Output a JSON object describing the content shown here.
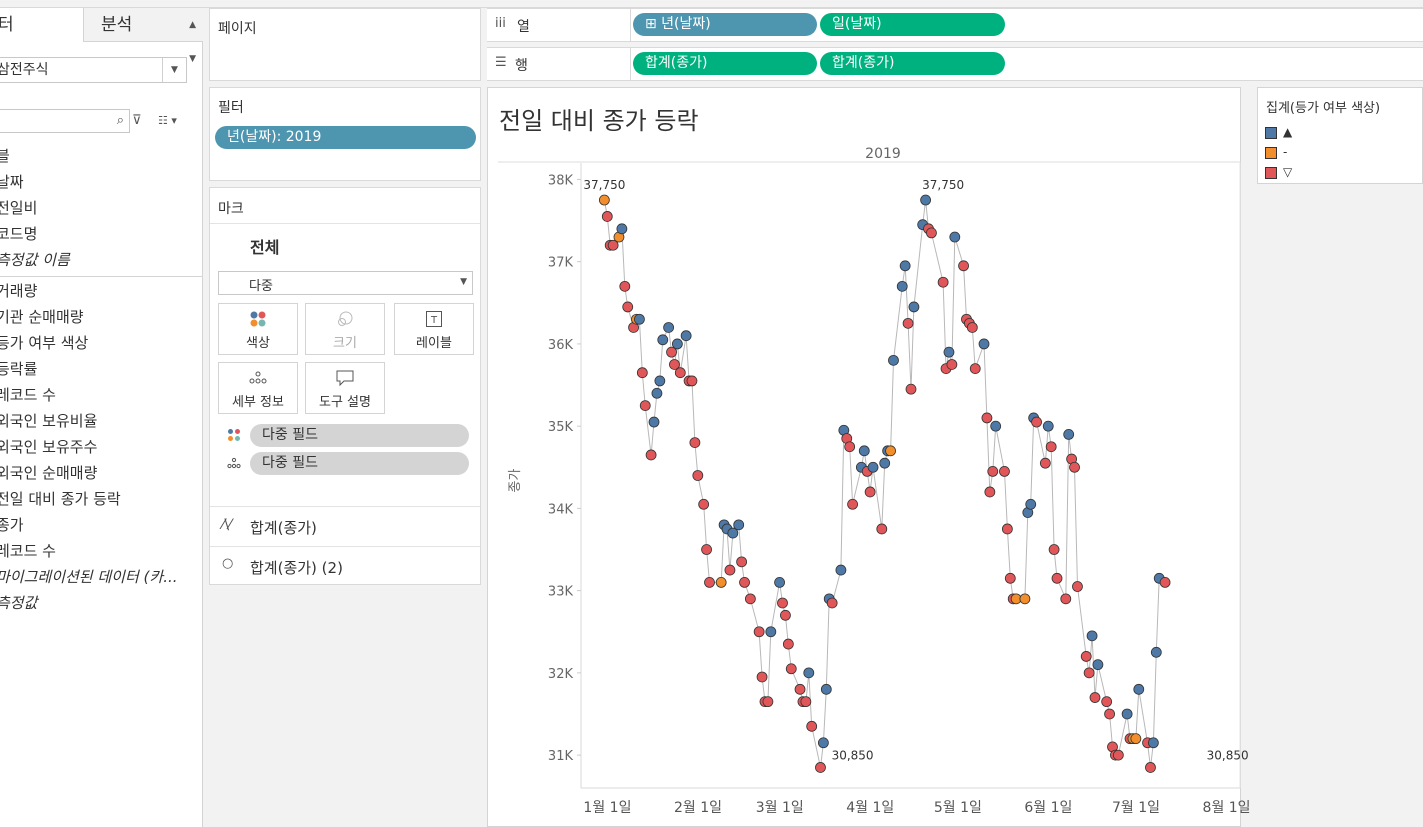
{
  "data_pane": {
    "tab_data": "터",
    "tab_analysis": "분석",
    "datasource": "삼전주식",
    "fields_dimensions": [
      {
        "label": "블",
        "italic": false
      },
      {
        "label": "날짜",
        "italic": false
      },
      {
        "label": "전일비",
        "italic": false
      },
      {
        "label": "코드명",
        "italic": false
      },
      {
        "label": "측정값 이름",
        "italic": true
      }
    ],
    "fields_measures": [
      {
        "label": "거래량",
        "italic": false
      },
      {
        "label": "기관 순매매량",
        "italic": false
      },
      {
        "label": "등가 여부 색상",
        "italic": false
      },
      {
        "label": "등락률",
        "italic": false
      },
      {
        "label": "레코드 수",
        "italic": false
      },
      {
        "label": "외국인 보유비율",
        "italic": false
      },
      {
        "label": "외국인 보유주수",
        "italic": false
      },
      {
        "label": "외국인 순매매량",
        "italic": false
      },
      {
        "label": "전일 대비 종가 등락",
        "italic": false
      },
      {
        "label": "종가",
        "italic": false
      },
      {
        "label": "레코드 수",
        "italic": false
      },
      {
        "label": "마이그레이션된 데이터 (카...",
        "italic": true
      },
      {
        "label": "측정값",
        "italic": true
      }
    ]
  },
  "pages_shelf": {
    "title": "페이지"
  },
  "filters_shelf": {
    "title": "필터",
    "pill": "년(날짜): 2019"
  },
  "marks_card": {
    "title": "마크",
    "all_label": "전체",
    "mark_type": "다중",
    "buttons": {
      "color": "색상",
      "size": "크기",
      "label": "레이블",
      "detail": "세부 정보",
      "tooltip": "도구 설명"
    },
    "field_pill_1": "다중 필드",
    "field_pill_2": "다중 필드",
    "measure_1": "합계(종가)",
    "measure_2": "합계(종가) (2)"
  },
  "columns_shelf": {
    "title": "열",
    "pill_1": "⊞ 년(날짜)",
    "pill_2": "일(날짜)"
  },
  "rows_shelf": {
    "title": "행",
    "pill_1": "합계(종가)",
    "pill_2": "합계(종가)"
  },
  "legend": {
    "title": "집계(등가 여부 색상)",
    "items": [
      {
        "label": "▲",
        "color": "#4e79a7"
      },
      {
        "label": "-",
        "color": "#f28e2b"
      },
      {
        "label": "▽",
        "color": "#e15759"
      }
    ]
  },
  "colors": {
    "up": "#4e79a7",
    "flat": "#f28e2b",
    "down": "#e15759",
    "blue_pill": "#4e95b0",
    "green_pill": "#00b180"
  },
  "chart_data": {
    "type": "line",
    "title": "전일 대비 종가 등락",
    "header": "2019",
    "ylabel": "종가",
    "xlabel": "",
    "ylim": [
      30600,
      38200
    ],
    "y_ticks": [
      31000,
      32000,
      33000,
      34000,
      35000,
      36000,
      37000,
      38000
    ],
    "y_tick_labels": [
      "31K",
      "32K",
      "33K",
      "34K",
      "35K",
      "36K",
      "37K",
      "38K"
    ],
    "x_tick_labels": [
      "1월 1일",
      "2월 1일",
      "3월 1일",
      "4월 1일",
      "5월 1일",
      "6월 1일",
      "7월 1일",
      "8월 1일"
    ],
    "x_tick_days": [
      1,
      32,
      60,
      91,
      121,
      152,
      182,
      213
    ],
    "x_range_days": [
      -6,
      220
    ],
    "annotations": [
      {
        "day": 2,
        "value": 37750,
        "text": "37,750"
      },
      {
        "day": 118,
        "value": 37750,
        "text": "37,750"
      },
      {
        "day": 87,
        "value": 30850,
        "text": "30,850"
      },
      {
        "day": 212,
        "value": 30850,
        "text": "30,850"
      }
    ],
    "points": [
      [
        2,
        37750,
        "f"
      ],
      [
        3,
        37550,
        "d"
      ],
      [
        4,
        37200,
        "d"
      ],
      [
        5,
        37200,
        "d"
      ],
      [
        7,
        37300,
        "f"
      ],
      [
        8,
        37400,
        "u"
      ],
      [
        9,
        36700,
        "d"
      ],
      [
        10,
        36450,
        "d"
      ],
      [
        12,
        36200,
        "d"
      ],
      [
        13,
        36300,
        "f"
      ],
      [
        14,
        36300,
        "u"
      ],
      [
        15,
        35650,
        "d"
      ],
      [
        16,
        35250,
        "d"
      ],
      [
        18,
        34650,
        "d"
      ],
      [
        19,
        35050,
        "u"
      ],
      [
        20,
        35400,
        "u"
      ],
      [
        21,
        35550,
        "u"
      ],
      [
        22,
        36050,
        "u"
      ],
      [
        24,
        36200,
        "u"
      ],
      [
        25,
        35900,
        "d"
      ],
      [
        26,
        35750,
        "d"
      ],
      [
        27,
        36000,
        "u"
      ],
      [
        28,
        35650,
        "d"
      ],
      [
        30,
        36100,
        "u"
      ],
      [
        31,
        35550,
        "d"
      ],
      [
        32,
        35550,
        "d"
      ],
      [
        33,
        34800,
        "d"
      ],
      [
        34,
        34400,
        "d"
      ],
      [
        36,
        34050,
        "d"
      ],
      [
        37,
        33500,
        "d"
      ],
      [
        38,
        33100,
        "d"
      ],
      [
        42,
        33100,
        "f"
      ],
      [
        43,
        33800,
        "u"
      ],
      [
        44,
        33750,
        "u"
      ],
      [
        45,
        33250,
        "d"
      ],
      [
        46,
        33700,
        "u"
      ],
      [
        48,
        33800,
        "u"
      ],
      [
        49,
        33350,
        "d"
      ],
      [
        50,
        33100,
        "d"
      ],
      [
        52,
        32900,
        "d"
      ],
      [
        55,
        32500,
        "d"
      ],
      [
        56,
        31950,
        "d"
      ],
      [
        57,
        31650,
        "d"
      ],
      [
        58,
        31650,
        "d"
      ],
      [
        59,
        32500,
        "u"
      ],
      [
        62,
        33100,
        "u"
      ],
      [
        63,
        32850,
        "d"
      ],
      [
        64,
        32700,
        "d"
      ],
      [
        65,
        32350,
        "d"
      ],
      [
        66,
        32050,
        "d"
      ],
      [
        69,
        31800,
        "d"
      ],
      [
        70,
        31650,
        "d"
      ],
      [
        71,
        31650,
        "d"
      ],
      [
        72,
        32000,
        "u"
      ],
      [
        73,
        31350,
        "d"
      ],
      [
        76,
        30850,
        "d"
      ],
      [
        77,
        31150,
        "u"
      ],
      [
        78,
        31800,
        "u"
      ],
      [
        79,
        32900,
        "u"
      ],
      [
        80,
        32850,
        "d"
      ],
      [
        83,
        33250,
        "u"
      ],
      [
        84,
        34950,
        "u"
      ],
      [
        85,
        34850,
        "d"
      ],
      [
        86,
        34750,
        "d"
      ],
      [
        87,
        34050,
        "d"
      ],
      [
        90,
        34500,
        "u"
      ],
      [
        91,
        34700,
        "u"
      ],
      [
        92,
        34450,
        "d"
      ],
      [
        93,
        34200,
        "d"
      ],
      [
        94,
        34500,
        "u"
      ],
      [
        97,
        33750,
        "d"
      ],
      [
        98,
        34550,
        "u"
      ],
      [
        99,
        34700,
        "u"
      ],
      [
        100,
        34700,
        "f"
      ],
      [
        101,
        35800,
        "u"
      ],
      [
        104,
        36700,
        "u"
      ],
      [
        105,
        36950,
        "u"
      ],
      [
        106,
        36250,
        "d"
      ],
      [
        107,
        35450,
        "d"
      ],
      [
        108,
        36450,
        "u"
      ],
      [
        111,
        37450,
        "u"
      ],
      [
        112,
        37750,
        "u"
      ],
      [
        113,
        37400,
        "d"
      ],
      [
        114,
        37350,
        "d"
      ],
      [
        118,
        36750,
        "d"
      ],
      [
        119,
        35700,
        "d"
      ],
      [
        120,
        35900,
        "u"
      ],
      [
        121,
        35750,
        "d"
      ],
      [
        122,
        37300,
        "u"
      ],
      [
        125,
        36950,
        "d"
      ],
      [
        126,
        36300,
        "d"
      ],
      [
        127,
        36250,
        "d"
      ],
      [
        128,
        36200,
        "d"
      ],
      [
        129,
        35700,
        "d"
      ],
      [
        132,
        36000,
        "u"
      ],
      [
        133,
        35100,
        "d"
      ],
      [
        134,
        34200,
        "d"
      ],
      [
        135,
        34450,
        "d"
      ],
      [
        136,
        35000,
        "u"
      ],
      [
        139,
        34450,
        "d"
      ],
      [
        140,
        33750,
        "d"
      ],
      [
        141,
        33150,
        "d"
      ],
      [
        142,
        32900,
        "d"
      ],
      [
        143,
        32900,
        "f"
      ],
      [
        146,
        32900,
        "f"
      ],
      [
        147,
        33950,
        "u"
      ],
      [
        148,
        34050,
        "u"
      ],
      [
        149,
        35100,
        "u"
      ],
      [
        150,
        35050,
        "d"
      ],
      [
        153,
        34550,
        "d"
      ],
      [
        154,
        35000,
        "u"
      ],
      [
        155,
        34750,
        "d"
      ],
      [
        156,
        33500,
        "d"
      ],
      [
        157,
        33150,
        "d"
      ],
      [
        160,
        32900,
        "d"
      ],
      [
        161,
        34900,
        "u"
      ],
      [
        162,
        34600,
        "d"
      ],
      [
        163,
        34500,
        "d"
      ],
      [
        164,
        33050,
        "d"
      ],
      [
        167,
        32200,
        "d"
      ],
      [
        168,
        32000,
        "d"
      ],
      [
        169,
        32450,
        "u"
      ],
      [
        170,
        31700,
        "d"
      ],
      [
        171,
        32100,
        "u"
      ],
      [
        174,
        31650,
        "d"
      ],
      [
        175,
        31500,
        "d"
      ],
      [
        176,
        31100,
        "d"
      ],
      [
        177,
        31000,
        "d"
      ],
      [
        178,
        31000,
        "d"
      ],
      [
        181,
        31500,
        "u"
      ],
      [
        182,
        31200,
        "d"
      ],
      [
        183,
        31200,
        "f"
      ],
      [
        184,
        31200,
        "f"
      ],
      [
        185,
        31800,
        "u"
      ],
      [
        188,
        31150,
        "d"
      ],
      [
        189,
        30850,
        "d"
      ],
      [
        190,
        31150,
        "u"
      ],
      [
        191,
        32250,
        "u"
      ],
      [
        192,
        33150,
        "u"
      ],
      [
        194,
        33100,
        "d"
      ]
    ]
  }
}
